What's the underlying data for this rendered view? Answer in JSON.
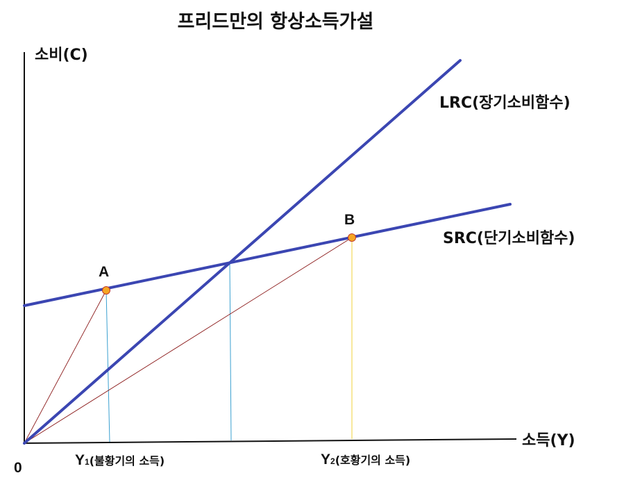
{
  "title": "프리드만의 항상소득가설",
  "axes": {
    "y_label": "소비(C)",
    "x_label": "소득(Y)",
    "origin": "0"
  },
  "curves": {
    "lrc": {
      "label": "LRC(장기소비함수)",
      "color": "#3b46b2"
    },
    "src": {
      "label": "SRC(단기소비함수)",
      "color": "#3b46b2"
    }
  },
  "points": {
    "a": {
      "label": "A",
      "color": "#f5a623"
    },
    "b": {
      "label": "B",
      "color": "#f5a623"
    }
  },
  "incomes": {
    "y1": {
      "main": "Y",
      "sub": "1",
      "desc": "(불황기의 소득)"
    },
    "y2": {
      "main": "Y",
      "sub": "2",
      "desc": "(호황기의 소득)"
    }
  },
  "colors": {
    "axis": "#111111",
    "ray": "#8b1a1a",
    "drop_a": "#3aa0d0",
    "drop_mid": "#3aa0d0",
    "drop_b": "#f2d23a"
  }
}
